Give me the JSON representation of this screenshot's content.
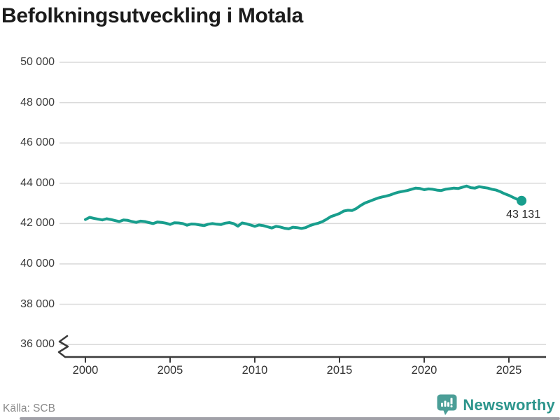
{
  "title": "Befolkningsutveckling i Motala",
  "source": "Källa: SCB",
  "branding": {
    "wordmark": "Newsworthy",
    "icon": "newsworthy-bars-speech-bubble-icon",
    "wordmark_color": "#2c958c",
    "icon_color": "#4b9e97"
  },
  "colors": {
    "line": "#189e8d",
    "grid": "#d9d9d9",
    "axis": "#3a3a3a",
    "tick_text": "#333333",
    "title_text": "#1b1b1b",
    "muted_text": "#8a8a8a"
  },
  "chart_data": {
    "type": "line",
    "title": "Befolkningsutveckling i Motala",
    "x_start": 2000.0,
    "x_step": 0.25,
    "values": [
      42200,
      42310,
      42260,
      42220,
      42180,
      42240,
      42200,
      42150,
      42100,
      42180,
      42160,
      42100,
      42060,
      42120,
      42100,
      42050,
      42000,
      42080,
      42060,
      42020,
      41960,
      42040,
      42030,
      42000,
      41920,
      41980,
      41970,
      41930,
      41900,
      41970,
      42000,
      41970,
      41950,
      42020,
      42050,
      42000,
      41870,
      42030,
      41990,
      41930,
      41860,
      41930,
      41900,
      41840,
      41780,
      41860,
      41830,
      41770,
      41740,
      41820,
      41800,
      41760,
      41800,
      41900,
      41970,
      42020,
      42100,
      42220,
      42350,
      42420,
      42500,
      42620,
      42660,
      42650,
      42750,
      42900,
      43020,
      43100,
      43180,
      43260,
      43320,
      43360,
      43420,
      43500,
      43560,
      43600,
      43640,
      43700,
      43760,
      43740,
      43680,
      43720,
      43700,
      43660,
      43640,
      43700,
      43730,
      43760,
      43740,
      43800,
      43860,
      43780,
      43760,
      43830,
      43790,
      43760,
      43700,
      43660,
      43580,
      43480,
      43400,
      43300,
      43200,
      43131
    ],
    "ylim": [
      36000,
      50000
    ],
    "yticks": [
      50000,
      48000,
      46000,
      44000,
      42000,
      40000,
      38000,
      36000
    ],
    "yticks_labels": [
      "50 000",
      "48 000",
      "46 000",
      "44 000",
      "42 000",
      "40 000",
      "38 000",
      "36 000"
    ],
    "xticks": [
      2000,
      2005,
      2010,
      2015,
      2020,
      2025
    ],
    "xticks_labels": [
      "2000",
      "2005",
      "2010",
      "2015",
      "2020",
      "2025"
    ],
    "grid": "horizontal",
    "legend": "none",
    "axis_break_at_bottom": true,
    "last_value": 43131,
    "last_value_label": "43 131"
  }
}
